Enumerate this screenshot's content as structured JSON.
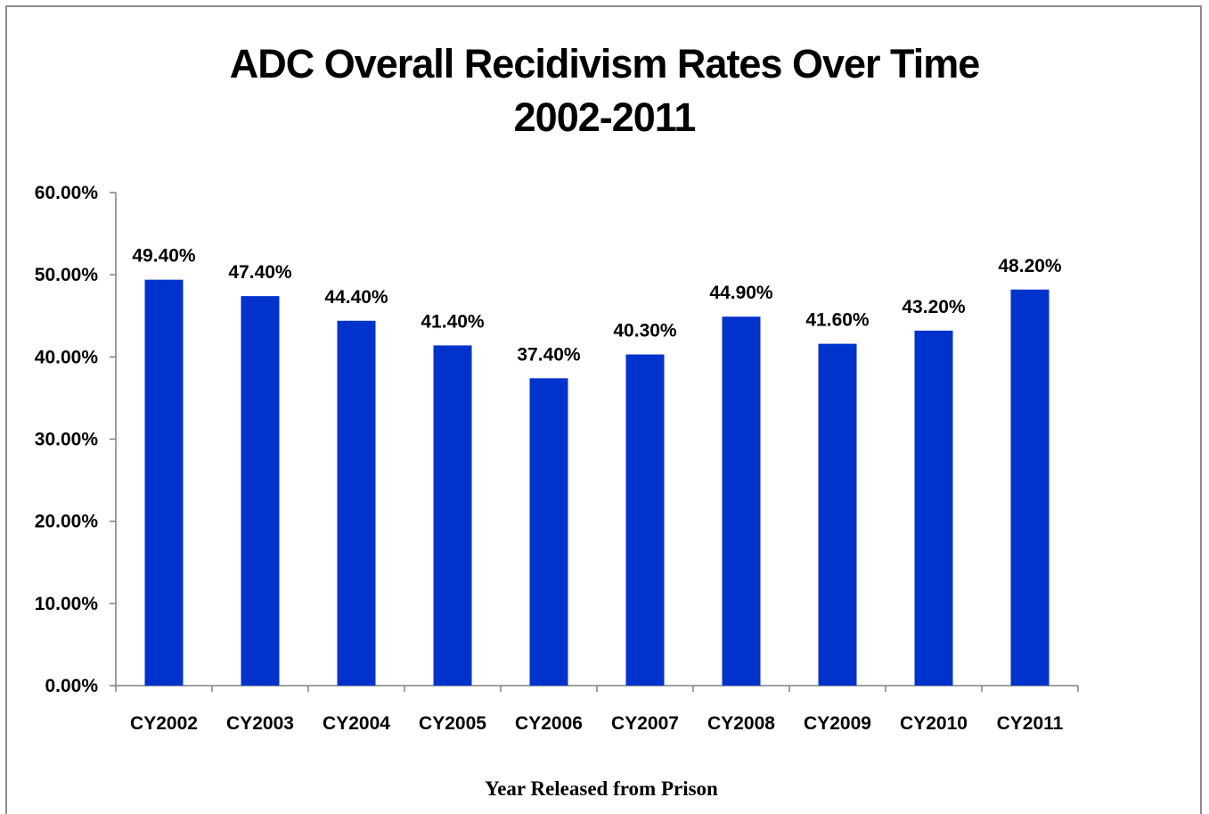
{
  "chart_data": {
    "type": "bar",
    "title_line1": "ADC Overall Recidivism Rates Over Time",
    "title_line2": "2002-2011",
    "xlabel": "Year Released from Prison",
    "ylabel": "",
    "categories": [
      "CY2002",
      "CY2003",
      "CY2004",
      "CY2005",
      "CY2006",
      "CY2007",
      "CY2008",
      "CY2009",
      "CY2010",
      "CY2011"
    ],
    "values": [
      49.4,
      47.4,
      44.4,
      41.4,
      37.4,
      40.3,
      44.9,
      41.6,
      43.2,
      48.2
    ],
    "value_labels": [
      "49.40%",
      "47.40%",
      "44.40%",
      "41.40%",
      "37.40%",
      "40.30%",
      "44.90%",
      "41.60%",
      "43.20%",
      "48.20%"
    ],
    "y_ticks": [
      0,
      10,
      20,
      30,
      40,
      50,
      60
    ],
    "y_tick_labels": [
      "0.00%",
      "10.00%",
      "20.00%",
      "30.00%",
      "40.00%",
      "50.00%",
      "60.00%"
    ],
    "ylim": [
      0,
      60
    ],
    "grid": false,
    "legend": "none",
    "bar_color": "#0033cc",
    "axis_color": "#808080"
  }
}
